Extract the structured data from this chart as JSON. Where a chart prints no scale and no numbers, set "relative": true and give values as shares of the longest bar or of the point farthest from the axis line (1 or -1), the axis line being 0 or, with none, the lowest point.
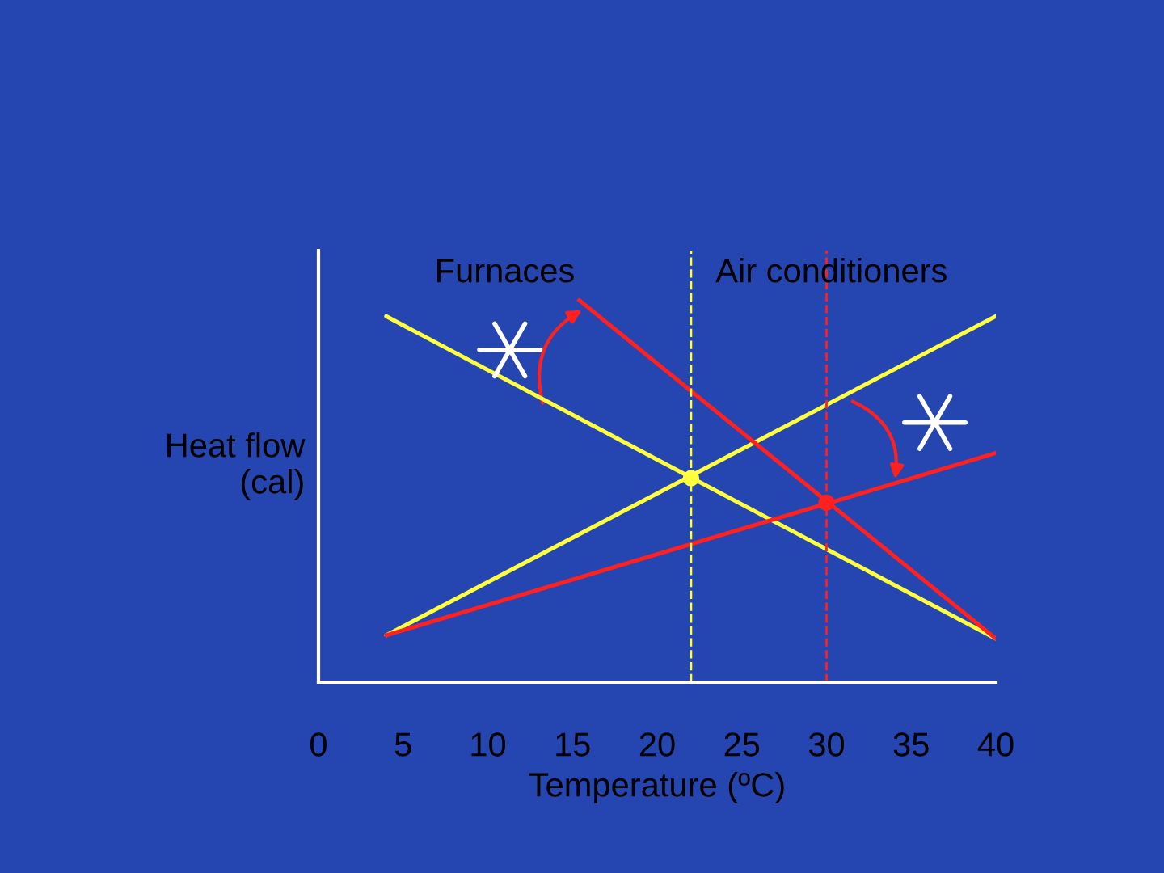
{
  "chart_data": {
    "type": "line",
    "relative": true,
    "xlabel": "Temperature (ºC)",
    "ylabel": "Heat flow\n(cal)",
    "xlim": [
      0,
      40
    ],
    "xticks": [
      0,
      5,
      10,
      15,
      20,
      25,
      30,
      35,
      40
    ],
    "tick_labels": "x",
    "grid": false,
    "legend": false,
    "line_style": "solid",
    "series": [
      {
        "color": "#ffff40",
        "x": [
          4,
          40
        ],
        "values": [
          0.958,
          0.114
        ]
      },
      {
        "color": "#ffff40",
        "x": [
          4,
          40
        ],
        "values": [
          0.123,
          0.958
        ]
      },
      {
        "color": "#ff2020",
        "x": [
          15.4,
          40
        ],
        "values": [
          1.0,
          0.114
        ]
      },
      {
        "color": "#ff2020",
        "x": [
          4,
          40
        ],
        "values": [
          0.123,
          0.6
        ]
      },
      {
        "type": "scatter",
        "color": "#ffff40",
        "x": [
          22
        ],
        "values": [
          0.534
        ]
      },
      {
        "type": "scatter",
        "color": "#ff2020",
        "x": [
          30
        ],
        "values": [
          0.47
        ]
      }
    ],
    "ref_lines": [
      {
        "axis": "x",
        "value": 22,
        "color": "#ffff40",
        "line_style": "dashed"
      },
      {
        "axis": "x",
        "value": 30,
        "color": "#ff2020",
        "line_style": "dashed"
      }
    ],
    "annotations": [
      "Furnaces",
      "Air conditioners"
    ]
  }
}
